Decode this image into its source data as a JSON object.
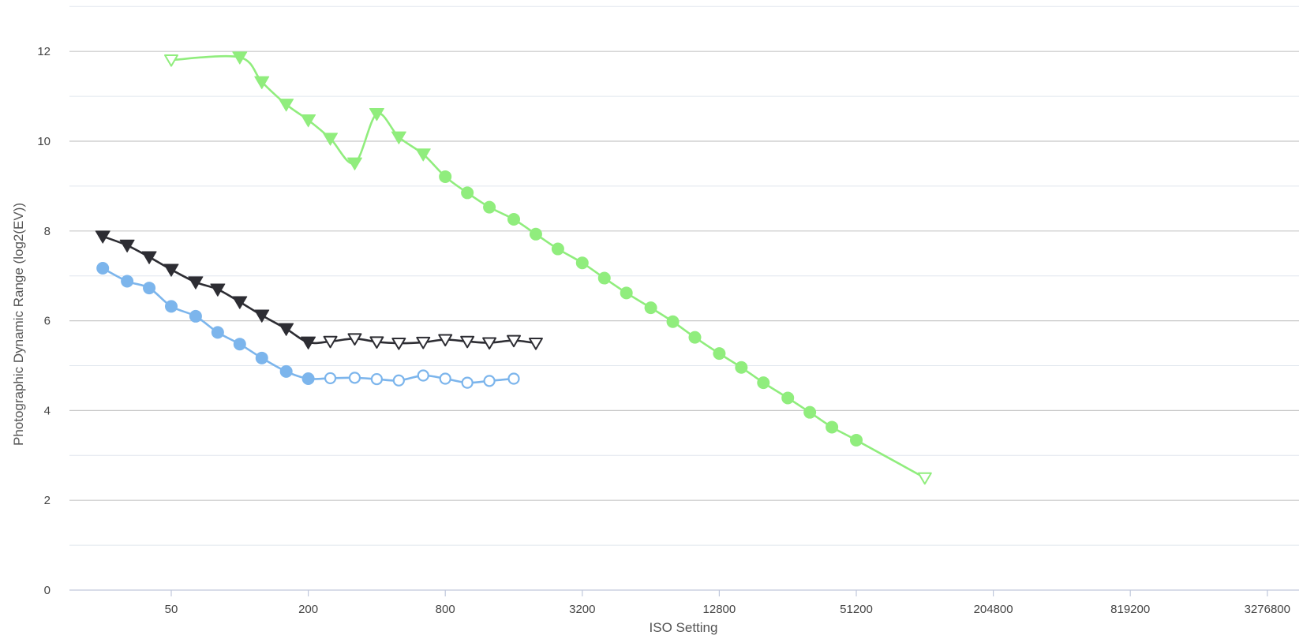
{
  "chart_data": {
    "type": "line",
    "title": "",
    "xlabel": "ISO Setting",
    "ylabel": "Photographic Dynamic Range (log2(EV))",
    "x_scale": "log2",
    "xlim": [
      25,
      3800000
    ],
    "ylim": [
      0,
      13
    ],
    "grid": true,
    "legend": "none",
    "x_ticks": [
      50,
      200,
      800,
      3200,
      12800,
      51200,
      204800,
      819200,
      3276800
    ],
    "x_tick_labels": [
      "50",
      "200",
      "800",
      "3200",
      "12800",
      "51200",
      "204800",
      "819200",
      "3276800"
    ],
    "y_ticks": [
      0,
      2,
      4,
      6,
      8,
      10,
      12
    ],
    "y_tick_labels": [
      "0",
      "2",
      "4",
      "6",
      "8",
      "10",
      "12"
    ],
    "series": [
      {
        "color": "#2d2d33",
        "marker": "triangle-down",
        "points": [
          {
            "x": 25,
            "y": 7.88,
            "filled": true
          },
          {
            "x": 32,
            "y": 7.68,
            "filled": true
          },
          {
            "x": 40,
            "y": 7.42,
            "filled": true
          },
          {
            "x": 50,
            "y": 7.14,
            "filled": true
          },
          {
            "x": 64,
            "y": 6.86,
            "filled": true
          },
          {
            "x": 80,
            "y": 6.7,
            "filled": true
          },
          {
            "x": 100,
            "y": 6.42,
            "filled": true
          },
          {
            "x": 125,
            "y": 6.12,
            "filled": true
          },
          {
            "x": 160,
            "y": 5.82,
            "filled": true
          },
          {
            "x": 200,
            "y": 5.52,
            "filled": true
          },
          {
            "x": 250,
            "y": 5.54,
            "filled": false
          },
          {
            "x": 320,
            "y": 5.6,
            "filled": false
          },
          {
            "x": 400,
            "y": 5.53,
            "filled": false
          },
          {
            "x": 500,
            "y": 5.5,
            "filled": false
          },
          {
            "x": 640,
            "y": 5.52,
            "filled": false
          },
          {
            "x": 800,
            "y": 5.58,
            "filled": false
          },
          {
            "x": 1000,
            "y": 5.54,
            "filled": false
          },
          {
            "x": 1250,
            "y": 5.51,
            "filled": false
          },
          {
            "x": 1600,
            "y": 5.56,
            "filled": false
          },
          {
            "x": 2000,
            "y": 5.5,
            "filled": false
          }
        ]
      },
      {
        "color": "#7cb5ec",
        "marker": "circle",
        "points": [
          {
            "x": 25,
            "y": 7.17,
            "filled": true
          },
          {
            "x": 32,
            "y": 6.88,
            "filled": true
          },
          {
            "x": 40,
            "y": 6.73,
            "filled": true
          },
          {
            "x": 50,
            "y": 6.32,
            "filled": true
          },
          {
            "x": 64,
            "y": 6.1,
            "filled": true
          },
          {
            "x": 80,
            "y": 5.74,
            "filled": true
          },
          {
            "x": 100,
            "y": 5.48,
            "filled": true
          },
          {
            "x": 125,
            "y": 5.17,
            "filled": true
          },
          {
            "x": 160,
            "y": 4.87,
            "filled": true
          },
          {
            "x": 200,
            "y": 4.71,
            "filled": true
          },
          {
            "x": 250,
            "y": 4.72,
            "filled": false
          },
          {
            "x": 320,
            "y": 4.73,
            "filled": false
          },
          {
            "x": 400,
            "y": 4.7,
            "filled": false
          },
          {
            "x": 500,
            "y": 4.67,
            "filled": false
          },
          {
            "x": 640,
            "y": 4.78,
            "filled": false
          },
          {
            "x": 800,
            "y": 4.71,
            "filled": false
          },
          {
            "x": 1000,
            "y": 4.62,
            "filled": false
          },
          {
            "x": 1250,
            "y": 4.66,
            "filled": false
          },
          {
            "x": 1600,
            "y": 4.71,
            "filled": false
          }
        ]
      },
      {
        "color": "#90ed7d",
        "marker": "mixed",
        "points": [
          {
            "x": 50,
            "y": 11.81,
            "filled": false,
            "marker": "triangle-down"
          },
          {
            "x": 100,
            "y": 11.87,
            "filled": true,
            "marker": "triangle-down"
          },
          {
            "x": 125,
            "y": 11.32,
            "filled": true,
            "marker": "triangle-down"
          },
          {
            "x": 160,
            "y": 10.82,
            "filled": true,
            "marker": "triangle-down"
          },
          {
            "x": 200,
            "y": 10.47,
            "filled": true,
            "marker": "triangle-down"
          },
          {
            "x": 250,
            "y": 10.06,
            "filled": true,
            "marker": "triangle-down"
          },
          {
            "x": 320,
            "y": 9.51,
            "filled": true,
            "marker": "triangle-down"
          },
          {
            "x": 400,
            "y": 10.61,
            "filled": true,
            "marker": "triangle-down"
          },
          {
            "x": 500,
            "y": 10.09,
            "filled": true,
            "marker": "triangle-down"
          },
          {
            "x": 640,
            "y": 9.71,
            "filled": true,
            "marker": "triangle-down"
          },
          {
            "x": 800,
            "y": 9.21,
            "filled": true,
            "marker": "circle"
          },
          {
            "x": 1000,
            "y": 8.85,
            "filled": true,
            "marker": "circle"
          },
          {
            "x": 1250,
            "y": 8.53,
            "filled": true,
            "marker": "circle"
          },
          {
            "x": 1600,
            "y": 8.26,
            "filled": true,
            "marker": "circle"
          },
          {
            "x": 2000,
            "y": 7.93,
            "filled": true,
            "marker": "circle"
          },
          {
            "x": 2500,
            "y": 7.6,
            "filled": true,
            "marker": "circle"
          },
          {
            "x": 3200,
            "y": 7.29,
            "filled": true,
            "marker": "circle"
          },
          {
            "x": 4000,
            "y": 6.95,
            "filled": true,
            "marker": "circle"
          },
          {
            "x": 5000,
            "y": 6.62,
            "filled": true,
            "marker": "circle"
          },
          {
            "x": 6400,
            "y": 6.29,
            "filled": true,
            "marker": "circle"
          },
          {
            "x": 8000,
            "y": 5.98,
            "filled": true,
            "marker": "circle"
          },
          {
            "x": 10000,
            "y": 5.63,
            "filled": true,
            "marker": "circle"
          },
          {
            "x": 12800,
            "y": 5.27,
            "filled": true,
            "marker": "circle"
          },
          {
            "x": 16000,
            "y": 4.96,
            "filled": true,
            "marker": "circle"
          },
          {
            "x": 20000,
            "y": 4.62,
            "filled": true,
            "marker": "circle"
          },
          {
            "x": 25600,
            "y": 4.28,
            "filled": true,
            "marker": "circle"
          },
          {
            "x": 32000,
            "y": 3.96,
            "filled": true,
            "marker": "circle"
          },
          {
            "x": 40000,
            "y": 3.63,
            "filled": true,
            "marker": "circle"
          },
          {
            "x": 51200,
            "y": 3.34,
            "filled": true,
            "marker": "circle"
          },
          {
            "x": 102400,
            "y": 2.5,
            "filled": false,
            "marker": "triangle-down"
          }
        ]
      }
    ]
  }
}
